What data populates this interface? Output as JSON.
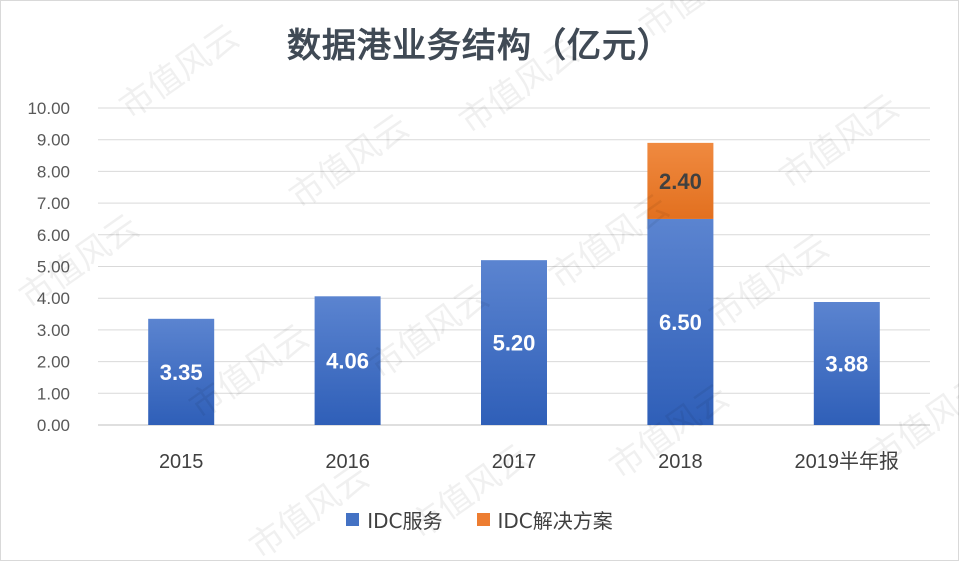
{
  "chart_data": {
    "type": "bar",
    "stacked": true,
    "title": "数据港业务结构（亿元）",
    "categories": [
      "2015",
      "2016",
      "2017",
      "2018",
      "2019半年报"
    ],
    "series": [
      {
        "name": "IDC服务",
        "values": [
          3.35,
          4.06,
          5.2,
          6.5,
          3.88
        ],
        "color": "#4472c4",
        "labels": [
          "3.35",
          "4.06",
          "5.20",
          "6.50",
          "3.88"
        ]
      },
      {
        "name": "IDC解决方案",
        "values": [
          null,
          null,
          null,
          2.4,
          null
        ],
        "color": "#ed7d31",
        "labels": [
          "",
          "",
          "",
          "2.40",
          ""
        ]
      }
    ],
    "ylim": [
      0,
      10
    ],
    "yticks": [
      "0.00",
      "1.00",
      "2.00",
      "3.00",
      "4.00",
      "5.00",
      "6.00",
      "7.00",
      "8.00",
      "9.00",
      "10.00"
    ],
    "grid": true,
    "legend_position": "bottom"
  },
  "watermark": "市值风云"
}
